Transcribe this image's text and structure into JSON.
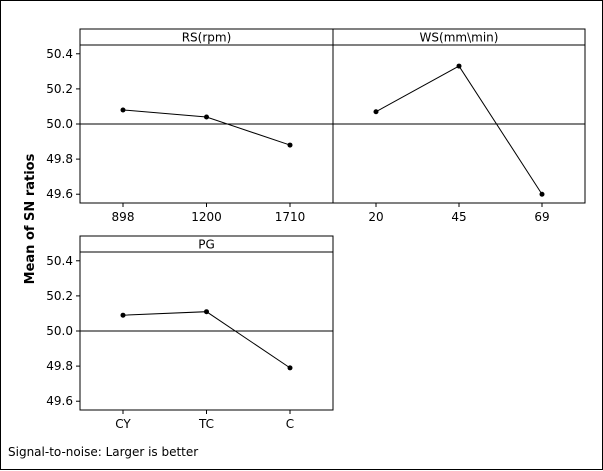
{
  "chart_data": {
    "type": "line",
    "ylabel": "Mean of SN ratios",
    "ylim": [
      49.55,
      50.45
    ],
    "yticks": [
      49.6,
      49.8,
      50.0,
      50.2,
      50.4
    ],
    "ytick_labels": [
      "49.6",
      "49.8",
      "50.0",
      "50.2",
      "50.4"
    ],
    "reference_line": 50.0,
    "grid": false,
    "panels": [
      {
        "title": "RS(rpm)",
        "categories": [
          "898",
          "1200",
          "1710"
        ],
        "values": [
          50.08,
          50.04,
          49.88
        ]
      },
      {
        "title": "WS(mm\\min)",
        "categories": [
          "20",
          "45",
          "69"
        ],
        "values": [
          50.07,
          50.33,
          49.6
        ]
      },
      {
        "title": "PG",
        "categories": [
          "CY",
          "TC",
          "C"
        ],
        "values": [
          50.09,
          50.11,
          49.79
        ]
      }
    ]
  },
  "footnote": "Signal-to-noise: Larger is better",
  "colors": {
    "line": "#000000",
    "marker": "#000000",
    "frame": "#000000"
  }
}
